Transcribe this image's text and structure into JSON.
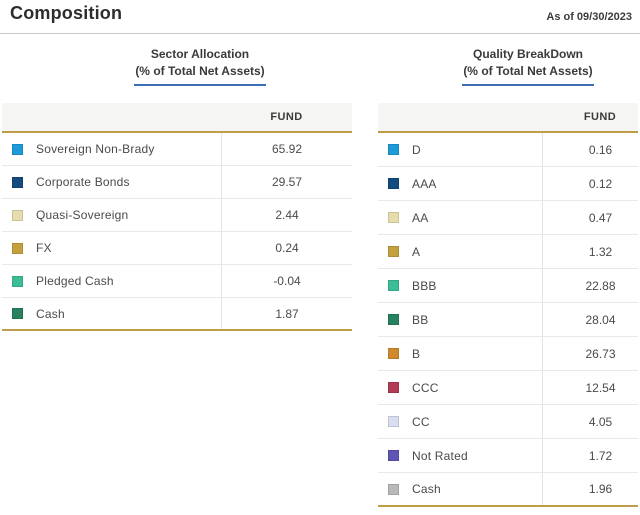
{
  "page": {
    "title": "Composition",
    "as_of": "As of 09/30/2023"
  },
  "colors": {
    "gold_rule": "#bf9e4a",
    "title_underline_blue": "#3a6fb5",
    "table_header_bg": "#f5f5f3"
  },
  "sector_allocation": {
    "title": "Sector Allocation",
    "subtitle": "(% of Total Net Assets)",
    "column_header": "FUND",
    "rows": [
      {
        "label": "Sovereign Non-Brady",
        "value": "65.92",
        "color": "#1d9bd8"
      },
      {
        "label": "Corporate Bonds",
        "value": "29.57",
        "color": "#134b7e"
      },
      {
        "label": "Quasi-Sovereign",
        "value": "2.44",
        "color": "#e6dcae"
      },
      {
        "label": "FX",
        "value": "0.24",
        "color": "#c5a03f"
      },
      {
        "label": "Pledged Cash",
        "value": "-0.04",
        "color": "#3dbd97"
      },
      {
        "label": "Cash",
        "value": "1.87",
        "color": "#28815f"
      }
    ]
  },
  "quality_breakdown": {
    "title": "Quality BreakDown",
    "subtitle": "(% of Total Net Assets)",
    "column_header": "FUND",
    "rows": [
      {
        "label": "D",
        "value": "0.16",
        "color": "#1d9bd8"
      },
      {
        "label": "AAA",
        "value": "0.12",
        "color": "#134b7e"
      },
      {
        "label": "AA",
        "value": "0.47",
        "color": "#e6dcae"
      },
      {
        "label": "A",
        "value": "1.32",
        "color": "#c5a03f"
      },
      {
        "label": "BBB",
        "value": "22.88",
        "color": "#3dbd97"
      },
      {
        "label": "BB",
        "value": "28.04",
        "color": "#28815f"
      },
      {
        "label": "B",
        "value": "26.73",
        "color": "#cf8a2d"
      },
      {
        "label": "CCC",
        "value": "12.54",
        "color": "#b23a55"
      },
      {
        "label": "CC",
        "value": "4.05",
        "color": "#d9def0"
      },
      {
        "label": "Not Rated",
        "value": "1.72",
        "color": "#5f55b5"
      },
      {
        "label": "Cash",
        "value": "1.96",
        "color": "#b9b9b9"
      }
    ]
  }
}
